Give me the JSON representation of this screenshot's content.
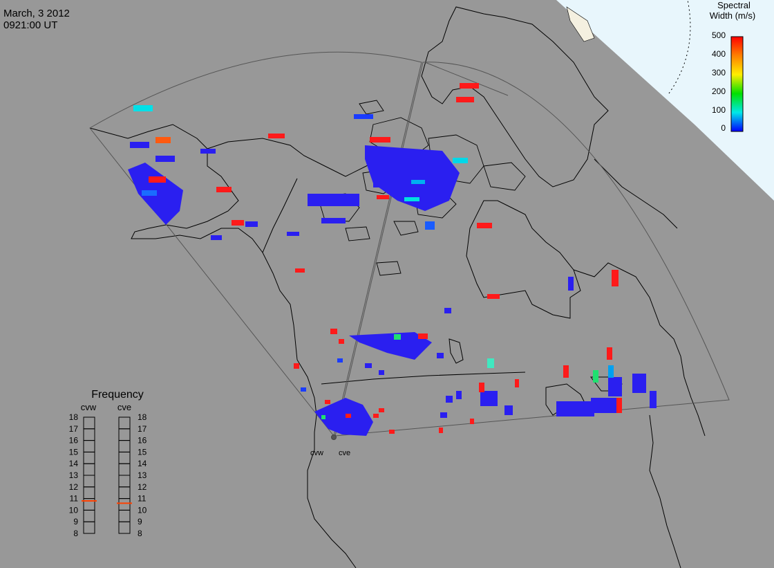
{
  "header": {
    "date": "March, 3 2012",
    "time": "0921:00 UT"
  },
  "colorbar": {
    "title_line1": "Spectral",
    "title_line2": "Width (m/s)",
    "ticks": [
      "500",
      "400",
      "300",
      "200",
      "100",
      "0"
    ],
    "colors": [
      "#ff0000",
      "#ff8000",
      "#ffee00",
      "#00e000",
      "#00e8e8",
      "#0000ff"
    ]
  },
  "frequency_panel": {
    "title": "Frequency",
    "radars": [
      {
        "name": "cvw",
        "value_mhz": 10.8
      },
      {
        "name": "cve",
        "value_mhz": 10.6
      }
    ],
    "scale": [
      "18",
      "17",
      "16",
      "15",
      "14",
      "13",
      "12",
      "11",
      "10",
      "9",
      "8"
    ],
    "marker_color": "#ff4000"
  },
  "radar_sites": [
    {
      "name": "cvw"
    },
    {
      "name": "cve"
    }
  ],
  "colors": {
    "ocean": "#989898",
    "polar_cap": "#e8f6fc",
    "land_outline": "#000000",
    "fov_outline": "#555555"
  }
}
